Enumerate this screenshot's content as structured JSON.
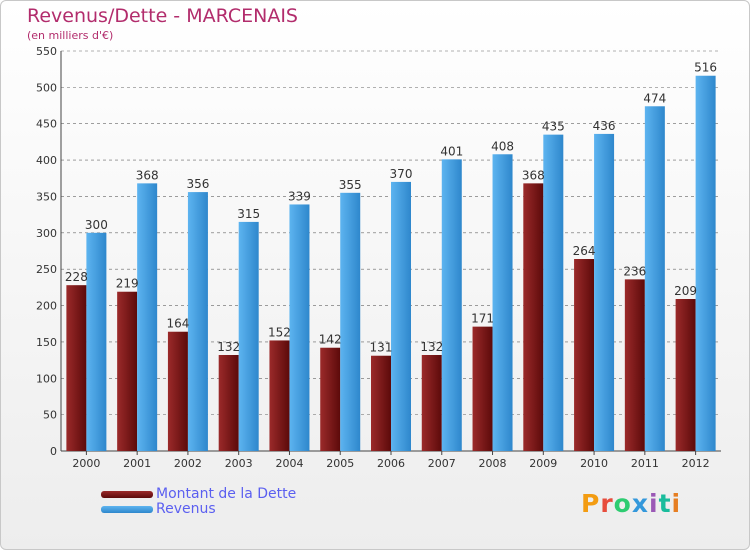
{
  "title": "Revenus/Dette - MARCENAIS",
  "subtitle": "(en milliers d'€)",
  "brand": {
    "text": "Proxiti",
    "colors": [
      "#f39c12",
      "#e74c3c",
      "#2ecc71",
      "#3498db",
      "#9b59b6",
      "#1abc9c",
      "#e67e22"
    ]
  },
  "colors": {
    "debt": "#8b1a1a",
    "revenue": "#4aa3e6",
    "axis_text": "#333333",
    "grid": "#666666"
  },
  "chart_data": {
    "type": "bar",
    "title": "Revenus/Dette - MARCENAIS",
    "subtitle": "(en milliers d'€)",
    "categories": [
      "2000",
      "2001",
      "2002",
      "2003",
      "2004",
      "2005",
      "2006",
      "2007",
      "2008",
      "2009",
      "2010",
      "2011",
      "2012"
    ],
    "series": [
      {
        "name": "Montant de la Dette",
        "values": [
          228,
          219,
          164,
          132,
          152,
          142,
          131,
          132,
          171,
          368,
          264,
          236,
          209
        ]
      },
      {
        "name": "Revenus",
        "values": [
          300,
          368,
          356,
          315,
          339,
          355,
          370,
          401,
          408,
          435,
          436,
          474,
          516
        ]
      }
    ],
    "ylim": [
      0,
      550
    ],
    "yticks": [
      0,
      50,
      100,
      150,
      200,
      250,
      300,
      350,
      400,
      450,
      500,
      550
    ],
    "grid": true,
    "legend": "bottom-left"
  }
}
